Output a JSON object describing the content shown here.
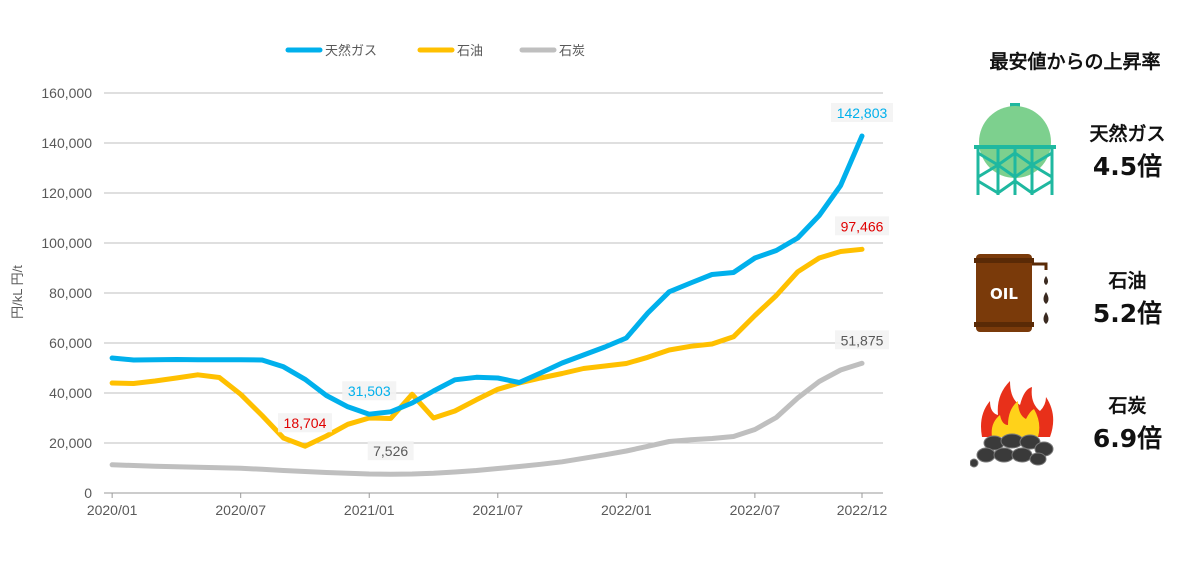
{
  "chart_data": {
    "type": "line",
    "ylabel": "円/kL 円/t",
    "ylim": [
      0,
      160000
    ],
    "yticks": [
      "0",
      "20,000",
      "40,000",
      "60,000",
      "80,000",
      "100,000",
      "120,000",
      "140,000",
      "160,000"
    ],
    "xticks": [
      "2020/01",
      "2020/07",
      "2021/01",
      "2021/07",
      "2022/01",
      "2022/07",
      "2022/12"
    ],
    "legend_position": "top",
    "grid": true,
    "x": [
      "2020/01",
      "2020/02",
      "2020/03",
      "2020/04",
      "2020/05",
      "2020/06",
      "2020/07",
      "2020/08",
      "2020/09",
      "2020/10",
      "2020/11",
      "2020/12",
      "2021/01",
      "2021/02",
      "2021/03",
      "2021/04",
      "2021/05",
      "2021/06",
      "2021/07",
      "2021/08",
      "2021/09",
      "2021/10",
      "2021/11",
      "2021/12",
      "2022/01",
      "2022/02",
      "2022/03",
      "2022/04",
      "2022/05",
      "2022/06",
      "2022/07",
      "2022/08",
      "2022/09",
      "2022/10",
      "2022/11",
      "2022/12"
    ],
    "series": [
      {
        "name": "天然ガス",
        "color": "#00B0EC",
        "values": [
          54000,
          53200,
          53300,
          53400,
          53300,
          53300,
          53300,
          53200,
          50500,
          45500,
          39000,
          34500,
          31503,
          32500,
          36000,
          40800,
          45300,
          46300,
          46000,
          44200,
          48000,
          52000,
          55200,
          58400,
          62000,
          72000,
          80500,
          84000,
          87400,
          88200,
          94000,
          97000,
          102000,
          111000,
          123000,
          142803
        ]
      },
      {
        "name": "石油",
        "color": "#FFC000",
        "values": [
          44000,
          43800,
          44800,
          46000,
          47300,
          46200,
          39500,
          31000,
          22000,
          18704,
          22800,
          27500,
          30000,
          29800,
          39500,
          30000,
          32800,
          37300,
          41500,
          44000,
          46000,
          47800,
          49800,
          50800,
          51800,
          54300,
          57200,
          58700,
          59600,
          62500,
          71000,
          79000,
          88500,
          94000,
          96600,
          97466
        ]
      },
      {
        "name": "石炭",
        "color": "#BFBFBF",
        "values": [
          11300,
          11000,
          10700,
          10500,
          10300,
          10100,
          9900,
          9500,
          9000,
          8600,
          8200,
          7900,
          7600,
          7526,
          7600,
          7900,
          8400,
          9000,
          9800,
          10600,
          11500,
          12500,
          13900,
          15300,
          16800,
          18700,
          20600,
          21300,
          21800,
          22600,
          25400,
          30200,
          38000,
          44600,
          49200,
          51875
        ]
      }
    ],
    "annotations": [
      {
        "series": 0,
        "index": 35,
        "text": "142,803",
        "color": "#00B0EC"
      },
      {
        "series": 0,
        "index": 12,
        "text": "31,503",
        "color": "#00B0EC"
      },
      {
        "series": 1,
        "index": 35,
        "text": "97,466",
        "color": "#E00000"
      },
      {
        "series": 1,
        "index": 9,
        "text": "18,704",
        "color": "#E00000"
      },
      {
        "series": 2,
        "index": 35,
        "text": "51,875",
        "color": "#595959"
      },
      {
        "series": 2,
        "index": 13,
        "text": "7,526",
        "color": "#595959"
      }
    ]
  },
  "panel": {
    "title": "最安値からの上昇率",
    "items": [
      {
        "name": "天然ガス",
        "ratio": "4.5倍",
        "icon": "gas-tank-icon"
      },
      {
        "name": "石油",
        "ratio": "5.2倍",
        "icon": "oil-drum-icon",
        "icon_text": "OIL"
      },
      {
        "name": "石炭",
        "ratio": "6.9倍",
        "icon": "burning-coal-icon"
      }
    ]
  }
}
